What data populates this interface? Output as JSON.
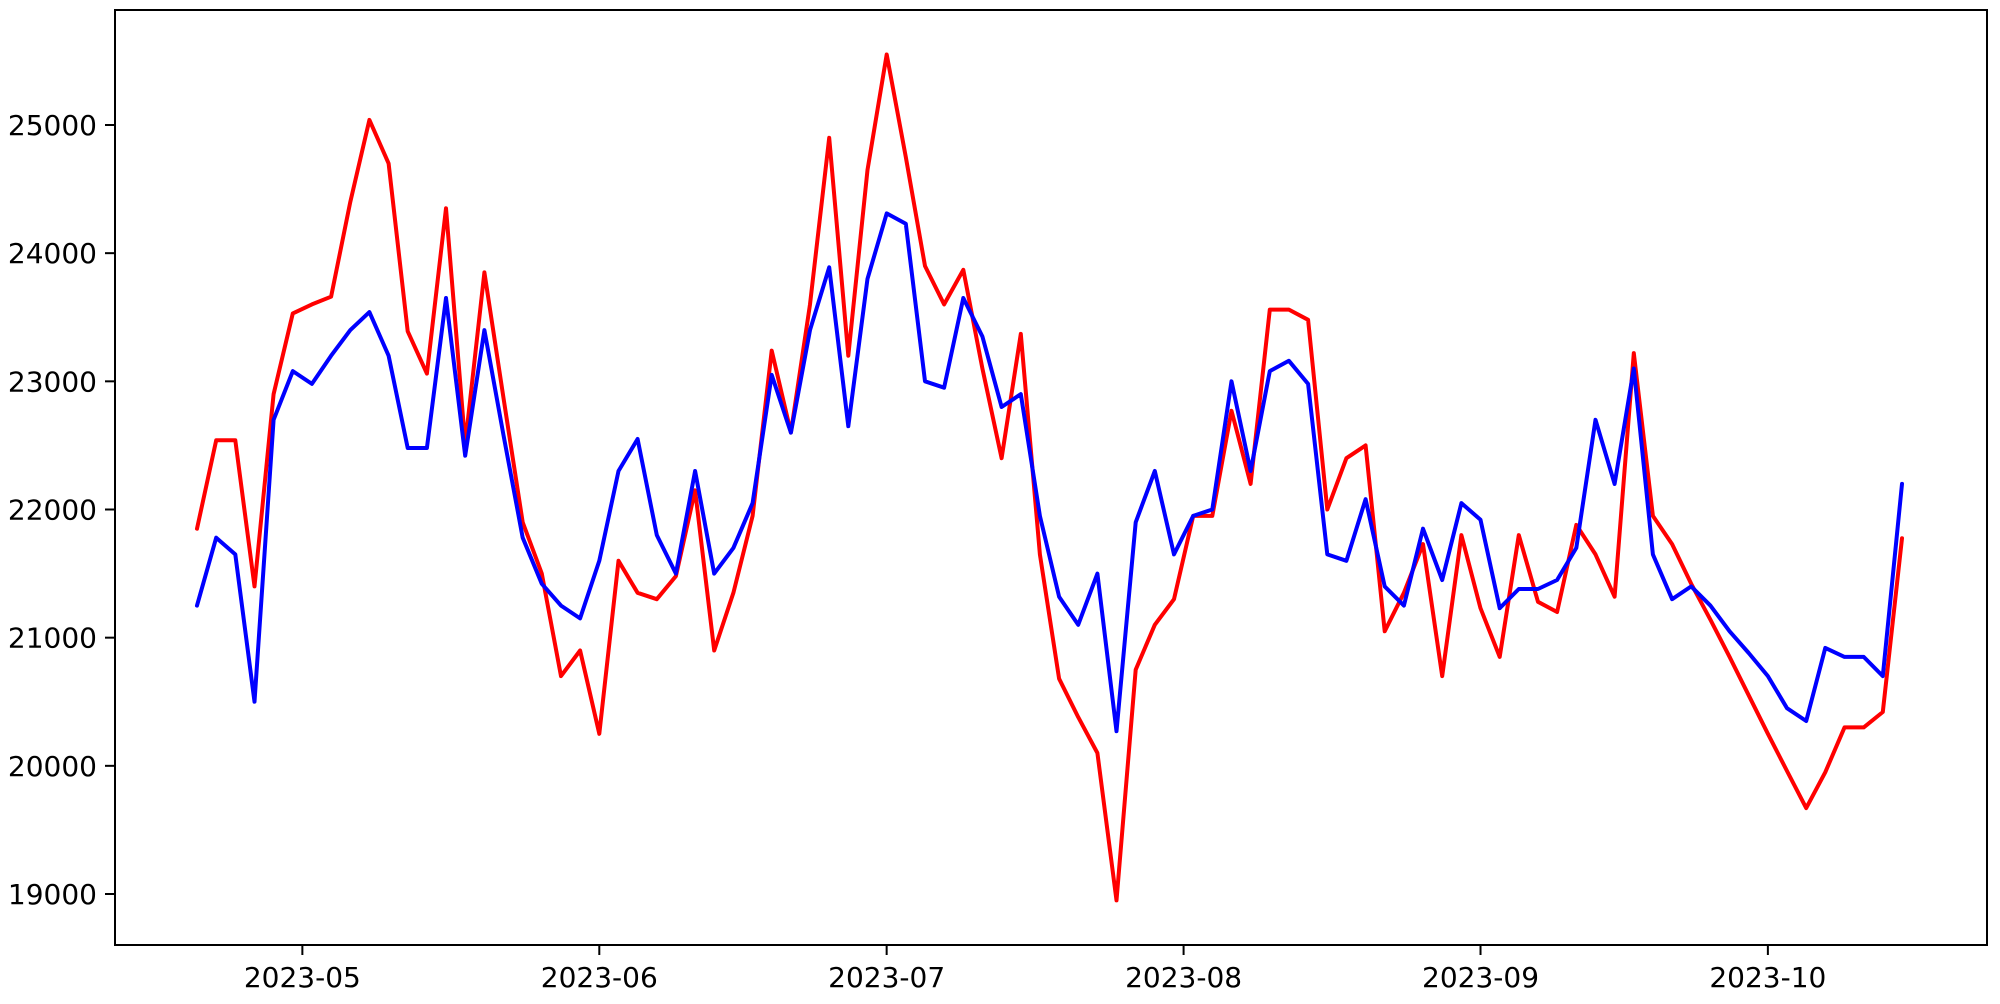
{
  "figure": {
    "background_color": "#ffffff",
    "spine_color": "#000000",
    "grid": false,
    "legend": false,
    "title": ""
  },
  "chart_data": {
    "type": "line",
    "title": "",
    "xlabel": "",
    "ylabel": "",
    "x_tick_labels": [
      "2023-05",
      "2023-06",
      "2023-07",
      "2023-08",
      "2023-09",
      "2023-10"
    ],
    "y_ticks": [
      19000,
      20000,
      21000,
      22000,
      23000,
      24000,
      25000
    ],
    "ylim": [
      18600,
      25900
    ],
    "x_range": [
      "2023-04-20",
      "2023-10-15"
    ],
    "x": [
      "2023-04-20",
      "2023-04-22",
      "2023-04-24",
      "2023-04-26",
      "2023-04-28",
      "2023-04-30",
      "2023-05-02",
      "2023-05-04",
      "2023-05-06",
      "2023-05-08",
      "2023-05-10",
      "2023-05-12",
      "2023-05-14",
      "2023-05-16",
      "2023-05-18",
      "2023-05-20",
      "2023-05-22",
      "2023-05-24",
      "2023-05-26",
      "2023-05-28",
      "2023-05-30",
      "2023-06-01",
      "2023-06-03",
      "2023-06-05",
      "2023-06-07",
      "2023-06-09",
      "2023-06-11",
      "2023-06-13",
      "2023-06-15",
      "2023-06-17",
      "2023-06-19",
      "2023-06-21",
      "2023-06-23",
      "2023-06-25",
      "2023-06-27",
      "2023-06-29",
      "2023-07-01",
      "2023-07-03",
      "2023-07-05",
      "2023-07-07",
      "2023-07-09",
      "2023-07-11",
      "2023-07-13",
      "2023-07-15",
      "2023-07-17",
      "2023-07-19",
      "2023-07-21",
      "2023-07-23",
      "2023-07-25",
      "2023-07-27",
      "2023-07-29",
      "2023-07-31",
      "2023-08-02",
      "2023-08-04",
      "2023-08-06",
      "2023-08-08",
      "2023-08-10",
      "2023-08-12",
      "2023-08-14",
      "2023-08-16",
      "2023-08-18",
      "2023-08-20",
      "2023-08-22",
      "2023-08-24",
      "2023-08-26",
      "2023-08-28",
      "2023-08-30",
      "2023-09-01",
      "2023-09-03",
      "2023-09-05",
      "2023-09-07",
      "2023-09-09",
      "2023-09-11",
      "2023-09-13",
      "2023-09-15",
      "2023-09-17",
      "2023-09-19",
      "2023-09-21",
      "2023-09-23",
      "2023-09-25",
      "2023-09-27",
      "2023-09-29",
      "2023-10-01",
      "2023-10-03",
      "2023-10-05",
      "2023-10-07",
      "2023-10-09",
      "2023-10-11",
      "2023-10-13",
      "2023-10-15"
    ],
    "series": [
      {
        "name": "red",
        "color": "#ff0000",
        "values": [
          21850,
          22540,
          22540,
          21400,
          22900,
          23530,
          23600,
          23660,
          24400,
          25040,
          24700,
          23390,
          23060,
          24350,
          22510,
          23850,
          22870,
          21900,
          21500,
          20700,
          20900,
          20250,
          21600,
          21350,
          21300,
          21480,
          22150,
          20900,
          21350,
          21950,
          23240,
          22600,
          23600,
          24900,
          23200,
          24650,
          25550,
          24750,
          23900,
          23600,
          23870,
          23100,
          22400,
          23370,
          21650,
          20680,
          20380,
          20100,
          18950,
          20750,
          21100,
          21300,
          21950,
          21950,
          22770,
          22200,
          23560,
          23560,
          23480,
          22000,
          22400,
          22500,
          21050,
          21350,
          21730,
          20700,
          21800,
          21230,
          20850,
          21800,
          21280,
          21200,
          21880,
          21650,
          21320,
          23220,
          21950,
          21730,
          21420,
          21140,
          20850,
          20550,
          20250,
          19960,
          19670,
          19950,
          20300,
          20300,
          20420,
          21775
        ]
      },
      {
        "name": "blue",
        "color": "#0000ff",
        "values": [
          21250,
          21780,
          21650,
          20500,
          22700,
          23080,
          22980,
          23200,
          23400,
          23540,
          23200,
          22480,
          22480,
          23650,
          22420,
          23400,
          22580,
          21780,
          21420,
          21250,
          21150,
          21600,
          22300,
          22550,
          21800,
          21500,
          22300,
          21500,
          21700,
          22050,
          23050,
          22600,
          23400,
          23890,
          22650,
          23800,
          24310,
          24230,
          23000,
          22950,
          23650,
          23350,
          22800,
          22900,
          21950,
          21320,
          21100,
          21500,
          20270,
          21900,
          22300,
          21650,
          21950,
          22000,
          23000,
          22300,
          23080,
          23160,
          22980,
          21650,
          21600,
          22080,
          21400,
          21250,
          21850,
          21450,
          22050,
          21920,
          21230,
          21380,
          21380,
          21450,
          21700,
          22700,
          22200,
          23100,
          21650,
          21300,
          21400,
          21250,
          21050,
          20880,
          20700,
          20450,
          20350,
          20920,
          20850,
          20850,
          20700,
          22200
        ]
      }
    ]
  }
}
